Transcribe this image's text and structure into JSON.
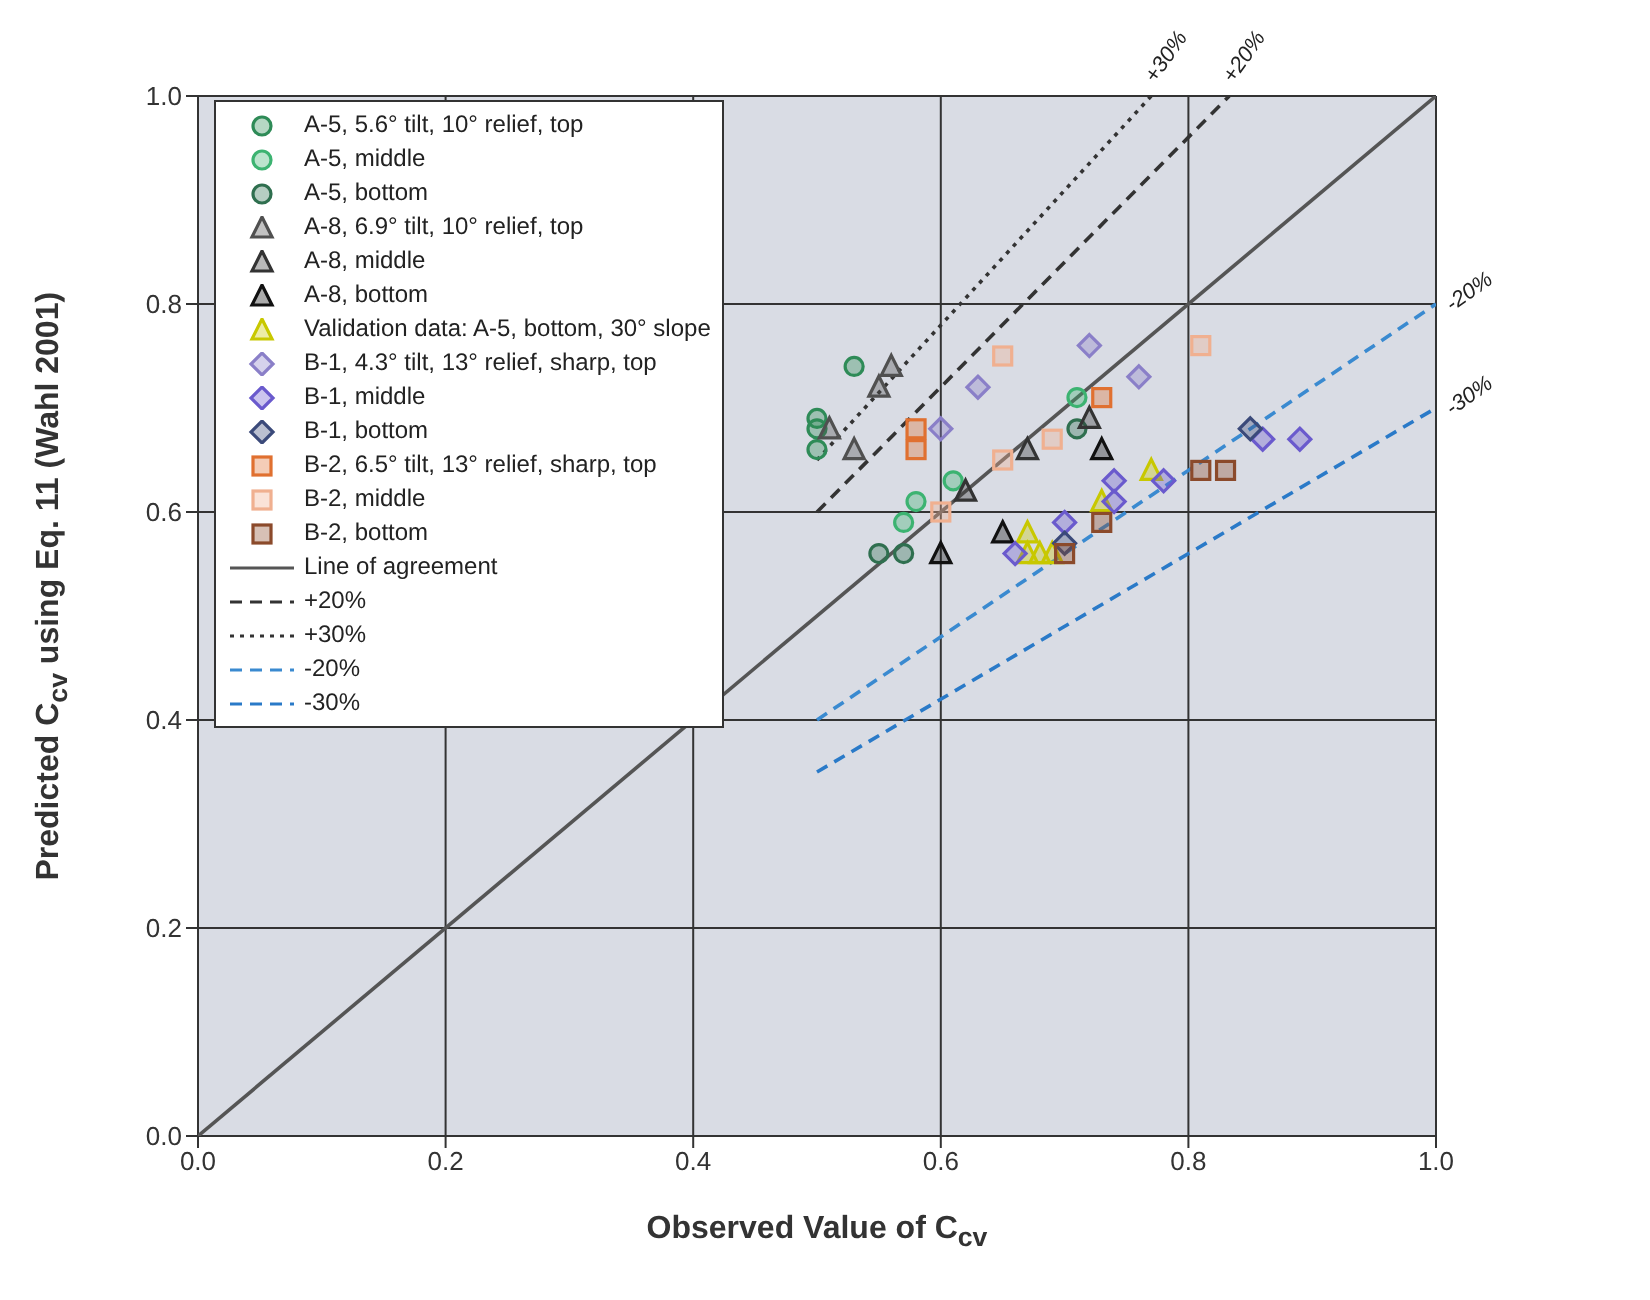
{
  "chart_data": {
    "type": "scatter",
    "xlabel": "Observed Value of C$_{cv}$",
    "ylabel": "Predicted C$_{cv}$ using Eq. 11 (Wahl 2001)",
    "xlim": [
      0,
      1
    ],
    "ylim": [
      0,
      1
    ],
    "xticks": [
      {
        "value": 0,
        "label": "0.0"
      },
      {
        "value": 0.2,
        "label": "0.2"
      },
      {
        "value": 0.4,
        "label": "0.4"
      },
      {
        "value": 0.6,
        "label": "0.6"
      },
      {
        "value": 0.8,
        "label": "0.8"
      },
      {
        "value": 1,
        "label": "1.0"
      }
    ],
    "yticks": [
      {
        "value": 0,
        "label": "0.0"
      },
      {
        "value": 0.2,
        "label": "0.2"
      },
      {
        "value": 0.4,
        "label": "0.4"
      },
      {
        "value": 0.6,
        "label": "0.6"
      },
      {
        "value": 0.8,
        "label": "0.8"
      },
      {
        "value": 1,
        "label": "1.0"
      }
    ],
    "grid": true,
    "legend": "top left",
    "series": [
      {
        "name": "A-5, 5.6° tilt, 10° relief, top",
        "type": "scatter",
        "marker": "circle",
        "color": "#2e8b57",
        "x": [
          0.53,
          0.5,
          0.5,
          0.5
        ],
        "values": [
          0.74,
          0.69,
          0.68,
          0.66
        ]
      },
      {
        "name": "A-5, middle",
        "type": "scatter",
        "marker": "circle",
        "color": "#3cb371",
        "x": [
          0.61,
          0.58,
          0.57,
          0.71
        ],
        "values": [
          0.63,
          0.61,
          0.59,
          0.71
        ]
      },
      {
        "name": "A-5, bottom",
        "type": "scatter",
        "marker": "circle",
        "color": "#2f6f4f",
        "x": [
          0.55,
          0.57,
          0.71
        ],
        "values": [
          0.56,
          0.56,
          0.68
        ]
      },
      {
        "name": "A-8, 6.9° tilt, 10° relief, top",
        "type": "scatter",
        "marker": "triangle",
        "color": "#505050",
        "x": [
          0.56,
          0.55,
          0.51,
          0.53
        ],
        "values": [
          0.74,
          0.72,
          0.68,
          0.66
        ]
      },
      {
        "name": "A-8, middle",
        "type": "scatter",
        "marker": "triangle",
        "color": "#333333",
        "x": [
          0.62,
          0.67,
          0.72
        ],
        "values": [
          0.62,
          0.66,
          0.69
        ]
      },
      {
        "name": "A-8, bottom",
        "type": "scatter",
        "marker": "triangle",
        "color": "#111111",
        "x": [
          0.6,
          0.65,
          0.73
        ],
        "values": [
          0.56,
          0.58,
          0.66
        ]
      },
      {
        "name": "Validation data: A-5, bottom, 30° slope",
        "type": "scatter",
        "marker": "triangle",
        "color": "#c8c800",
        "x": [
          0.67,
          0.67,
          0.68,
          0.69,
          0.77,
          0.73
        ],
        "values": [
          0.58,
          0.56,
          0.56,
          0.56,
          0.64,
          0.61
        ]
      },
      {
        "name": "B-1, 4.3° tilt, 13° relief, sharp, top",
        "type": "scatter",
        "marker": "diamond",
        "color": "#8a7fc8",
        "x": [
          0.63,
          0.6,
          0.72,
          0.76
        ],
        "values": [
          0.72,
          0.68,
          0.76,
          0.73
        ]
      },
      {
        "name": "B-1, middle",
        "type": "scatter",
        "marker": "diamond",
        "color": "#6a5acd",
        "x": [
          0.66,
          0.7,
          0.78,
          0.74,
          0.74,
          0.86,
          0.89
        ],
        "values": [
          0.56,
          0.59,
          0.63,
          0.63,
          0.61,
          0.67,
          0.67
        ]
      },
      {
        "name": "B-1, bottom",
        "type": "scatter",
        "marker": "diamond",
        "color": "#3b4a7a",
        "x": [
          0.85,
          0.7
        ],
        "values": [
          0.68,
          0.57
        ]
      },
      {
        "name": "B-2, 6.5° tilt, 13° relief, sharp, top",
        "type": "scatter",
        "marker": "square",
        "color": "#e07030",
        "x": [
          0.58,
          0.58,
          0.73
        ],
        "values": [
          0.68,
          0.66,
          0.71
        ]
      },
      {
        "name": "B-2, middle",
        "type": "scatter",
        "marker": "square",
        "color": "#f0b090",
        "x": [
          0.65,
          0.69,
          0.6,
          0.65,
          0.81
        ],
        "values": [
          0.75,
          0.67,
          0.6,
          0.65,
          0.76
        ]
      },
      {
        "name": "B-2, bottom",
        "type": "scatter",
        "marker": "square",
        "color": "#8b4a2b",
        "x": [
          0.7,
          0.81,
          0.83,
          0.73
        ],
        "values": [
          0.56,
          0.64,
          0.64,
          0.59
        ]
      },
      {
        "name": "Line of agreement",
        "type": "line",
        "line_style": "solid",
        "color": "#555555",
        "x": [
          0,
          1
        ],
        "values": [
          0,
          1
        ]
      },
      {
        "name": "+20%",
        "type": "line",
        "line_style": "dashed",
        "color": "#333333",
        "x": [
          0.5,
          0.833
        ],
        "values": [
          0.6,
          1
        ]
      },
      {
        "name": "+30%",
        "type": "line",
        "line_style": "dotted",
        "color": "#333333",
        "x": [
          0.5,
          0.77
        ],
        "values": [
          0.65,
          1
        ]
      },
      {
        "name": "-20%",
        "type": "line",
        "line_style": "dashed",
        "color": "#3a8ad0",
        "x": [
          0.5,
          1
        ],
        "values": [
          0.4,
          0.8
        ]
      },
      {
        "name": "-30%",
        "type": "line",
        "line_style": "dashed",
        "color": "#2a7ac8",
        "x": [
          0.5,
          1
        ],
        "values": [
          0.35,
          0.7
        ]
      }
    ],
    "annotations": [
      {
        "text": "+30%",
        "x": 0.77,
        "y": 1
      },
      {
        "text": "+20%",
        "x": 0.833,
        "y": 1
      },
      {
        "text": "-20%",
        "x": 1,
        "y": 0.8
      },
      {
        "text": "-30%",
        "x": 1,
        "y": 0.7
      }
    ]
  }
}
